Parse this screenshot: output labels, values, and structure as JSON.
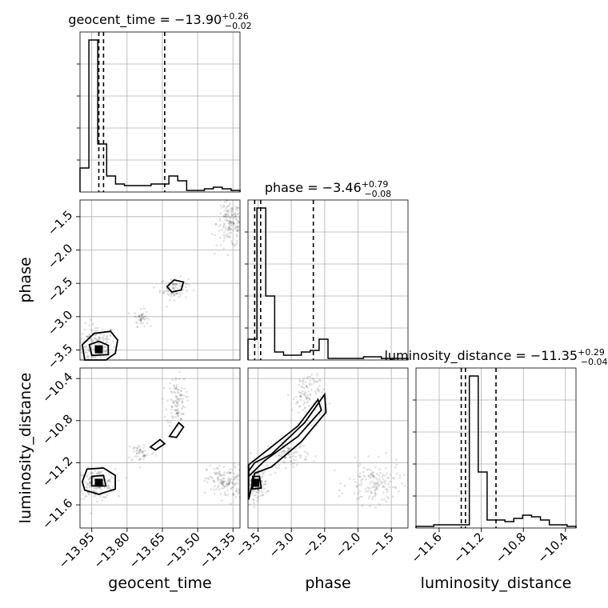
{
  "chart_data": {
    "type": "scatter",
    "subtype": "corner plot",
    "grid": true,
    "parameters": [
      {
        "name": "geocent_time",
        "title_prefix": "geocent_time = ",
        "median": "−13.90",
        "plus": "+0.26",
        "minus": "−0.02",
        "range": [
          -14.0,
          -13.32
        ],
        "ticks": [
          -13.95,
          -13.8,
          -13.65,
          -13.5,
          -13.35
        ],
        "tick_labels": [
          "−13.95",
          "−13.80",
          "−13.65",
          "−13.50",
          "−13.35"
        ],
        "quantiles": [
          -13.92,
          -13.9,
          -13.64
        ],
        "hist_values": [
          0.15,
          0.95,
          0.3,
          0.1,
          0.05,
          0.04,
          0.04,
          0.04,
          0.05,
          0.05,
          0.1,
          0.07,
          0.01,
          0.01,
          0.02,
          0.03,
          0.02,
          0.01
        ]
      },
      {
        "name": "phase",
        "title_prefix": "phase = ",
        "median": "−3.46",
        "plus": "+0.79",
        "minus": "−0.08",
        "range": [
          -3.65,
          -1.25
        ],
        "ticks": [
          -3.5,
          -3.0,
          -2.5,
          -2.0,
          -1.5
        ],
        "tick_labels": [
          "−3.5",
          "−3.0",
          "−2.5",
          "−2.0",
          "−1.5"
        ],
        "quantiles": [
          -3.55,
          -3.46,
          -2.67
        ],
        "hist_values": [
          0.13,
          0.95,
          0.4,
          0.05,
          0.03,
          0.03,
          0.05,
          0.06,
          0.13,
          0.01,
          0.01,
          0.01,
          0.01,
          0.02,
          0.02,
          0.01,
          0.01,
          0.01
        ]
      },
      {
        "name": "luminosity_distance",
        "title_prefix": "luminosity_distance = ",
        "median": "−11.35",
        "plus": "+0.29",
        "minus": "−0.04",
        "range": [
          -11.82,
          -10.3
        ],
        "ticks": [
          -11.6,
          -11.2,
          -10.8,
          -10.4
        ],
        "tick_labels": [
          "−11.6",
          "−11.2",
          "−10.8",
          "−10.4"
        ],
        "quantiles": [
          -11.39,
          -11.35,
          -11.06
        ],
        "hist_values": [
          0.01,
          0.01,
          0.02,
          0.02,
          0.02,
          0.02,
          0.95,
          0.35,
          0.05,
          0.05,
          0.04,
          0.06,
          0.08,
          0.07,
          0.05,
          0.02,
          0.02,
          0.01
        ]
      }
    ],
    "pairs": [
      {
        "x_param": 0,
        "y_param": 1,
        "clusters": [
          {
            "cx": -13.93,
            "cy": -3.42,
            "sx": 0.04,
            "sy": 0.15,
            "n": 160
          },
          {
            "cx": -13.74,
            "cy": -3.02,
            "sx": 0.015,
            "sy": 0.06,
            "n": 45
          },
          {
            "cx": -13.6,
            "cy": -2.58,
            "sx": 0.03,
            "sy": 0.08,
            "n": 80
          },
          {
            "cx": -13.36,
            "cy": -1.6,
            "sx": 0.03,
            "sy": 0.18,
            "n": 170
          }
        ],
        "contours": [
          [
            [
              -13.98,
              -3.65
            ],
            [
              -13.99,
              -3.42
            ],
            [
              -13.94,
              -3.25
            ],
            [
              -13.87,
              -3.22
            ],
            [
              -13.84,
              -3.35
            ],
            [
              -13.85,
              -3.55
            ],
            [
              -13.89,
              -3.65
            ]
          ],
          [
            [
              -13.95,
              -3.58
            ],
            [
              -13.96,
              -3.42
            ],
            [
              -13.92,
              -3.37
            ],
            [
              -13.88,
              -3.43
            ],
            [
              -13.88,
              -3.57
            ]
          ],
          [
            [
              -13.63,
              -2.55
            ],
            [
              -13.6,
              -2.45
            ],
            [
              -13.56,
              -2.48
            ],
            [
              -13.57,
              -2.6
            ],
            [
              -13.61,
              -2.63
            ]
          ]
        ],
        "peak": [
          -13.92,
          -3.49
        ]
      },
      {
        "x_param": 0,
        "y_param": 2,
        "clusters": [
          {
            "cx": -13.93,
            "cy": -11.4,
            "sx": 0.04,
            "sy": 0.07,
            "n": 160
          },
          {
            "cx": -13.74,
            "cy": -11.1,
            "sx": 0.03,
            "sy": 0.05,
            "n": 50
          },
          {
            "cx": -13.59,
            "cy": -10.62,
            "sx": 0.02,
            "sy": 0.12,
            "n": 110
          },
          {
            "cx": -13.38,
            "cy": -11.38,
            "sx": 0.04,
            "sy": 0.08,
            "n": 150
          }
        ],
        "contours": [
          [
            [
              -13.99,
              -11.38
            ],
            [
              -13.97,
              -11.26
            ],
            [
              -13.9,
              -11.25
            ],
            [
              -13.85,
              -11.32
            ],
            [
              -13.85,
              -11.45
            ],
            [
              -13.92,
              -11.5
            ],
            [
              -13.98,
              -11.46
            ]
          ],
          [
            [
              -13.95,
              -11.42
            ],
            [
              -13.95,
              -11.33
            ],
            [
              -13.9,
              -11.32
            ],
            [
              -13.89,
              -11.42
            ]
          ],
          [
            [
              -13.7,
              -11.05
            ],
            [
              -13.66,
              -10.98
            ],
            [
              -13.64,
              -11.02
            ],
            [
              -13.68,
              -11.08
            ]
          ],
          [
            [
              -13.62,
              -10.95
            ],
            [
              -13.58,
              -10.82
            ],
            [
              -13.56,
              -10.86
            ],
            [
              -13.59,
              -10.96
            ]
          ]
        ],
        "peak": [
          -13.92,
          -11.39
        ]
      },
      {
        "x_param": 1,
        "y_param": 2,
        "clusters": [
          {
            "cx": -3.52,
            "cy": -11.4,
            "sx": 0.08,
            "sy": 0.07,
            "n": 150
          },
          {
            "cx": -3.05,
            "cy": -11.12,
            "sx": 0.15,
            "sy": 0.06,
            "n": 90
          },
          {
            "cx": -2.75,
            "cy": -10.55,
            "sx": 0.12,
            "sy": 0.12,
            "n": 110
          },
          {
            "cx": -1.75,
            "cy": -11.4,
            "sx": 0.2,
            "sy": 0.1,
            "n": 150
          }
        ],
        "contours": [
          [
            [
              -3.64,
              -11.33
            ],
            [
              -3.4,
              -11.18
            ],
            [
              -2.9,
              -10.95
            ],
            [
              -2.55,
              -10.7
            ],
            [
              -2.6,
              -10.6
            ],
            [
              -2.9,
              -10.85
            ],
            [
              -3.4,
              -11.1
            ],
            [
              -3.64,
              -11.22
            ]
          ],
          [
            [
              -3.64,
              -11.55
            ],
            [
              -3.55,
              -11.3
            ],
            [
              -3.3,
              -11.24
            ],
            [
              -2.85,
              -11.0
            ],
            [
              -2.48,
              -10.72
            ],
            [
              -2.5,
              -10.55
            ],
            [
              -2.8,
              -10.82
            ],
            [
              -3.3,
              -11.12
            ],
            [
              -3.55,
              -11.2
            ],
            [
              -3.64,
              -11.28
            ]
          ],
          [
            [
              -3.58,
              -11.45
            ],
            [
              -3.58,
              -11.33
            ],
            [
              -3.48,
              -11.33
            ],
            [
              -3.45,
              -11.44
            ]
          ]
        ],
        "peak": [
          -3.54,
          -11.39
        ]
      }
    ]
  }
}
